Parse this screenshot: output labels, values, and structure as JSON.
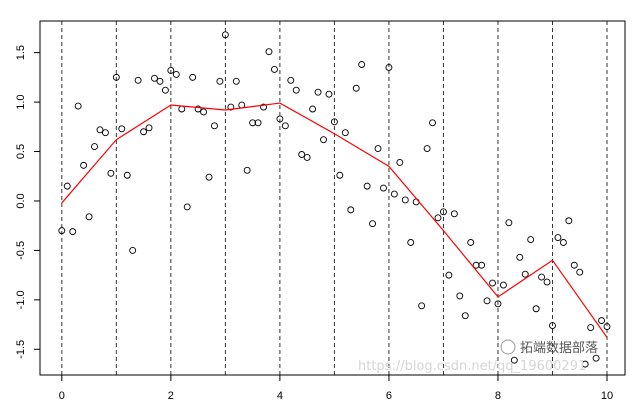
{
  "chart_data": {
    "type": "scatter",
    "title": "",
    "xlabel": "",
    "ylabel": "",
    "xlim": [
      -0.4,
      10.33
    ],
    "ylim": [
      -1.76,
      1.82
    ],
    "x_ticks": [
      0,
      2,
      4,
      6,
      8,
      10
    ],
    "x_tick_labels": [
      "0",
      "2",
      "4",
      "6",
      "8",
      "10"
    ],
    "y_ticks": [
      -1.5,
      -1.0,
      -0.5,
      0.0,
      0.5,
      1.0,
      1.5
    ],
    "y_tick_labels": [
      "-1.5",
      "-1.0",
      "-0.5",
      "0.0",
      "0.5",
      "1.0",
      "1.5"
    ],
    "grid": false,
    "knot_lines": {
      "x": [
        0,
        1,
        2,
        3,
        4,
        5,
        6,
        7,
        8,
        9,
        10
      ],
      "style": "dashed",
      "color": "#333333"
    },
    "points": {
      "marker": "open-circle",
      "color": "#000000",
      "xy": [
        [
          0,
          -0.3
        ],
        [
          0.1,
          0.15
        ],
        [
          0.2,
          -0.31
        ],
        [
          0.3,
          0.96
        ],
        [
          0.4,
          0.36
        ],
        [
          0.5,
          -0.16
        ],
        [
          0.6,
          0.55
        ],
        [
          0.7,
          0.72
        ],
        [
          0.8,
          0.69
        ],
        [
          0.9,
          0.28
        ],
        [
          1.0,
          1.25
        ],
        [
          1.1,
          0.73
        ],
        [
          1.2,
          0.26
        ],
        [
          1.3,
          -0.5
        ],
        [
          1.4,
          1.22
        ],
        [
          1.5,
          0.7
        ],
        [
          1.6,
          0.74
        ],
        [
          1.7,
          1.24
        ],
        [
          1.8,
          1.21
        ],
        [
          1.9,
          1.12
        ],
        [
          2.0,
          1.32
        ],
        [
          2.1,
          1.28
        ],
        [
          2.2,
          0.93
        ],
        [
          2.3,
          -0.06
        ],
        [
          2.4,
          1.25
        ],
        [
          2.5,
          0.93
        ],
        [
          2.6,
          0.9
        ],
        [
          2.7,
          0.24
        ],
        [
          2.8,
          0.76
        ],
        [
          2.9,
          1.21
        ],
        [
          3.0,
          1.68
        ],
        [
          3.1,
          0.95
        ],
        [
          3.2,
          1.21
        ],
        [
          3.3,
          0.97
        ],
        [
          3.4,
          0.31
        ],
        [
          3.5,
          0.79
        ],
        [
          3.6,
          0.79
        ],
        [
          3.7,
          0.95
        ],
        [
          3.8,
          1.51
        ],
        [
          3.9,
          1.33
        ],
        [
          4.0,
          0.83
        ],
        [
          4.1,
          0.76
        ],
        [
          4.2,
          1.22
        ],
        [
          4.3,
          1.12
        ],
        [
          4.4,
          0.47
        ],
        [
          4.5,
          0.44
        ],
        [
          4.6,
          0.93
        ],
        [
          4.7,
          1.1
        ],
        [
          4.8,
          0.62
        ],
        [
          4.9,
          1.08
        ],
        [
          5.0,
          0.8
        ],
        [
          5.1,
          0.26
        ],
        [
          5.2,
          0.69
        ],
        [
          5.3,
          -0.09
        ],
        [
          5.4,
          1.14
        ],
        [
          5.5,
          1.38
        ],
        [
          5.6,
          0.15
        ],
        [
          5.7,
          -0.23
        ],
        [
          5.8,
          0.53
        ],
        [
          5.9,
          0.13
        ],
        [
          6.0,
          1.35
        ],
        [
          6.1,
          0.07
        ],
        [
          6.2,
          0.39
        ],
        [
          6.3,
          0.01
        ],
        [
          6.4,
          -0.42
        ],
        [
          6.5,
          -0.01
        ],
        [
          6.6,
          -1.06
        ],
        [
          6.7,
          0.53
        ],
        [
          6.8,
          0.79
        ],
        [
          6.9,
          -0.17
        ],
        [
          7.0,
          -0.11
        ],
        [
          7.1,
          -0.75
        ],
        [
          7.2,
          -0.13
        ],
        [
          7.3,
          -0.96
        ],
        [
          7.4,
          -1.16
        ],
        [
          7.5,
          -0.42
        ],
        [
          7.6,
          -0.65
        ],
        [
          7.7,
          -0.65
        ],
        [
          7.8,
          -1.01
        ],
        [
          7.9,
          -0.83
        ],
        [
          8.0,
          -1.04
        ],
        [
          8.1,
          -0.85
        ],
        [
          8.2,
          -0.22
        ],
        [
          8.3,
          -1.61
        ],
        [
          8.4,
          -0.57
        ],
        [
          8.5,
          -0.74
        ],
        [
          8.6,
          -0.39
        ],
        [
          8.7,
          -1.09
        ],
        [
          8.8,
          -0.77
        ],
        [
          8.9,
          -0.82
        ],
        [
          9.0,
          -1.26
        ],
        [
          9.1,
          -0.37
        ],
        [
          9.2,
          -0.42
        ],
        [
          9.3,
          -0.2
        ],
        [
          9.4,
          -0.65
        ],
        [
          9.5,
          -0.72
        ],
        [
          9.6,
          -1.65
        ],
        [
          9.7,
          -1.28
        ],
        [
          9.8,
          -1.59
        ],
        [
          9.9,
          -1.21
        ],
        [
          10.0,
          -1.27
        ]
      ]
    },
    "series": [
      {
        "type": "line",
        "color": "#ff0000",
        "x": [
          0,
          1,
          2,
          3,
          4,
          5,
          6,
          7,
          8,
          9,
          10
        ],
        "y": [
          -0.02,
          0.62,
          0.97,
          0.92,
          0.99,
          0.68,
          0.35,
          -0.3,
          -0.97,
          -0.6,
          -1.38
        ]
      }
    ]
  },
  "watermark": {
    "url": "https://blog.csdn.net/qq_19600291",
    "brand": "拓端数据部落"
  }
}
